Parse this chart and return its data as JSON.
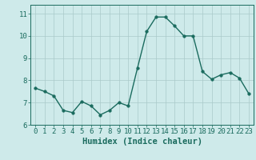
{
  "x": [
    0,
    1,
    2,
    3,
    4,
    5,
    6,
    7,
    8,
    9,
    10,
    11,
    12,
    13,
    14,
    15,
    16,
    17,
    18,
    19,
    20,
    21,
    22,
    23
  ],
  "y": [
    7.65,
    7.5,
    7.3,
    6.65,
    6.55,
    7.05,
    6.85,
    6.45,
    6.65,
    7.0,
    6.85,
    8.55,
    10.2,
    10.85,
    10.85,
    10.45,
    10.0,
    10.0,
    8.4,
    8.05,
    8.25,
    8.35,
    8.1,
    7.4
  ],
  "line_color": "#1a6b5e",
  "marker": "o",
  "markersize": 2.5,
  "linewidth": 1.0,
  "bg_color": "#ceeaea",
  "grid_color": "#aacaca",
  "xlabel": "Humidex (Indice chaleur)",
  "xlabel_fontsize": 7.5,
  "ylim": [
    6,
    11.4
  ],
  "xlim": [
    -0.5,
    23.5
  ],
  "yticks": [
    6,
    7,
    8,
    9,
    10,
    11
  ],
  "xticks": [
    0,
    1,
    2,
    3,
    4,
    5,
    6,
    7,
    8,
    9,
    10,
    11,
    12,
    13,
    14,
    15,
    16,
    17,
    18,
    19,
    20,
    21,
    22,
    23
  ],
  "tick_fontsize": 6.5,
  "tick_color": "#1a6b5e",
  "axis_color": "#1a6b5e"
}
